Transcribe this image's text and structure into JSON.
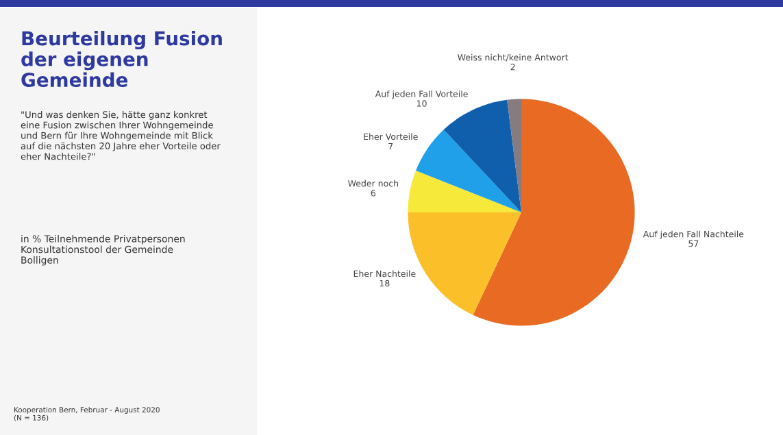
{
  "chart_data": {
    "type": "pie",
    "title": "Beurteilung Fusion\nder eigenen\nGemeinde",
    "subtitle": "\"Und was denken Sie, hätte ganz konkret\neine Fusion zwischen Ihrer Wohngemeinde\nund Bern für Ihre Wohngemeinde mit Blick\nauf die nächsten 20 Jahre eher Vorteile oder\neher Nachteile?\"",
    "annotations": [
      "in % Teilnehmende Privatpersonen\nKonsultationstool der Gemeinde\nBolligen",
      "Kooperation Bern, Februar - August 2020\n(N = 136)"
    ],
    "categories": [
      "Auf jeden Fall Nachteile",
      "Eher Nachteile",
      "Weder noch",
      "Eher Vorteile",
      "Auf jeden Fall Vorteile",
      "Weiss nicht/keine Antwort"
    ],
    "values": [
      57,
      18,
      6,
      7,
      10,
      2
    ],
    "colors": [
      "#e86a23",
      "#fbbf2a",
      "#f7e93a",
      "#1fa0e8",
      "#0f5fad",
      "#857b80"
    ],
    "data_labels": true,
    "legend": false
  }
}
